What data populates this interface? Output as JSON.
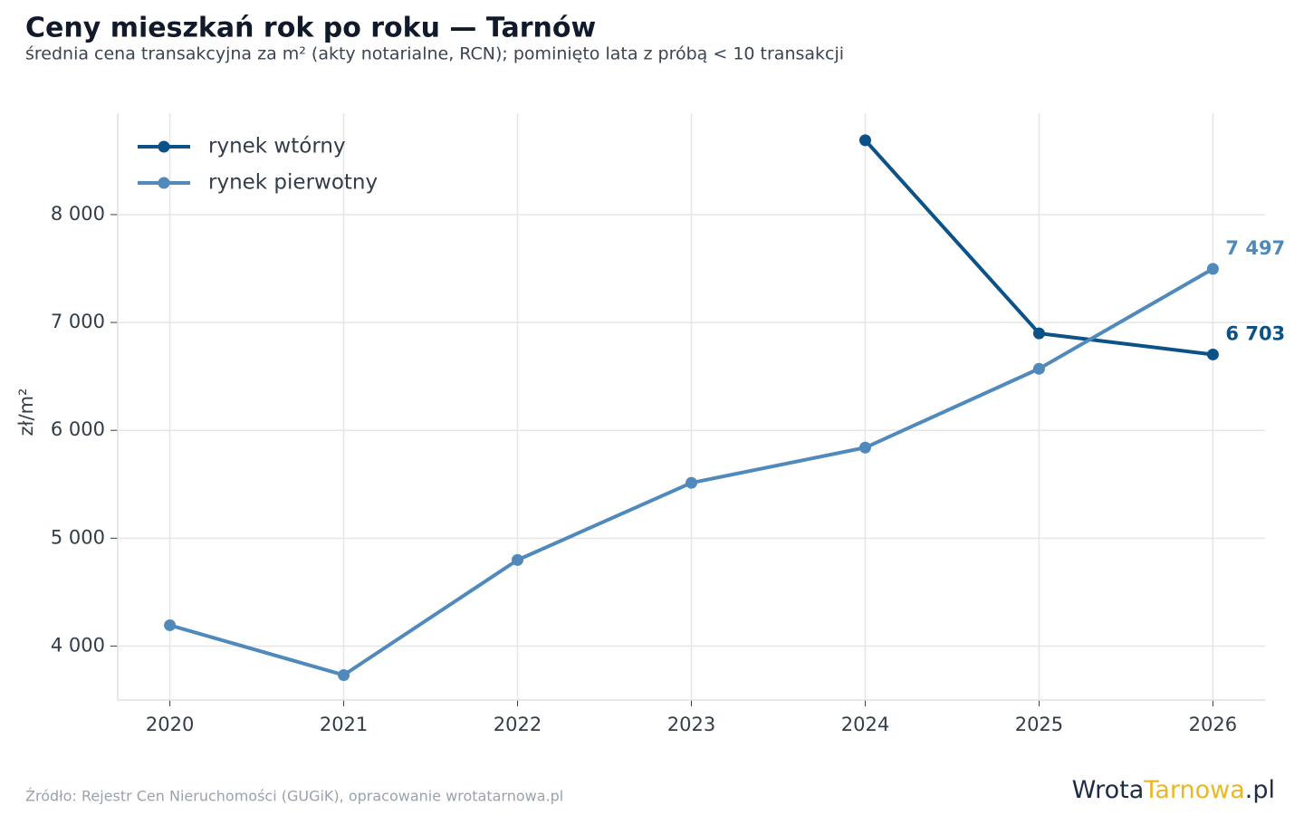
{
  "chart_data": {
    "type": "line",
    "title": "Ceny mieszkań rok po roku — Tarnów",
    "subtitle": "średnia cena transakcyjna za m² (akty notarialne, RCN); pominięto lata z próbą < 10 transakcji",
    "y_label": "zł/m²",
    "source": "Źródło: Rejestr Cen Nieruchomości (GUGiK), opracowanie wrotatarnowa.pl",
    "logo": [
      "Wrota",
      "Tarnowa",
      ".pl"
    ],
    "x": [
      2020,
      2021,
      2022,
      2023,
      2024,
      2025,
      2026
    ],
    "xlim": [
      2019.7,
      2026.3
    ],
    "xticks": [
      2020,
      2021,
      2022,
      2023,
      2024,
      2025,
      2026
    ],
    "ylim": [
      3500,
      8940
    ],
    "yticks": [
      {
        "value": 4000,
        "label": "4 000"
      },
      {
        "value": 5000,
        "label": "5 000"
      },
      {
        "value": 6000,
        "label": "6 000"
      },
      {
        "value": 7000,
        "label": "7 000"
      },
      {
        "value": 8000,
        "label": "8 000"
      }
    ],
    "grid": true,
    "legend": "top-left",
    "series": [
      {
        "name": "rynek wtórny",
        "color": "#0b5288",
        "values": [
          null,
          null,
          null,
          null,
          8689,
          6899,
          6703
        ],
        "value_labels": [
          null,
          null,
          null,
          null,
          null,
          null,
          "6 703"
        ]
      },
      {
        "name": "rynek pierwotny",
        "color": "#5089bb",
        "values": [
          4193,
          3731,
          4798,
          5513,
          5840,
          6571,
          7497
        ],
        "value_labels": [
          null,
          null,
          null,
          null,
          null,
          null,
          "7 497"
        ]
      }
    ]
  }
}
